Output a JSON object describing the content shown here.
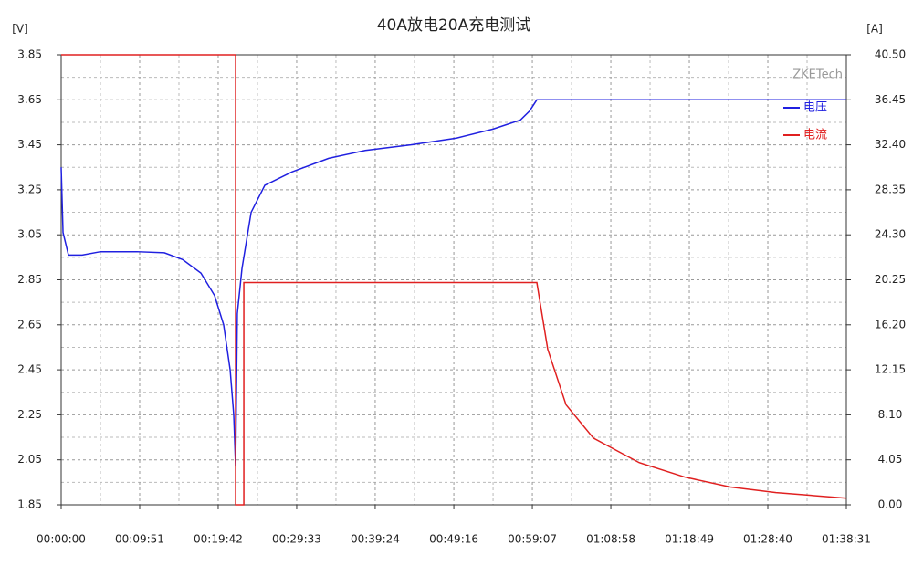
{
  "chart_data": {
    "type": "line",
    "title": "40A放电20A充电测试",
    "y_label": "[V]",
    "y2_label": "[A]",
    "watermark": "ZKETech",
    "xlim": [
      0,
      5911
    ],
    "xticks": [
      {
        "value": 0,
        "label": "00:00:00"
      },
      {
        "value": 591,
        "label": "00:09:51"
      },
      {
        "value": 1182,
        "label": "00:19:42"
      },
      {
        "value": 1773,
        "label": "00:29:33"
      },
      {
        "value": 2364,
        "label": "00:39:24"
      },
      {
        "value": 2956,
        "label": "00:49:16"
      },
      {
        "value": 3547,
        "label": "00:59:07"
      },
      {
        "value": 4138,
        "label": "01:08:58"
      },
      {
        "value": 4729,
        "label": "01:18:49"
      },
      {
        "value": 5320,
        "label": "01:28:40"
      },
      {
        "value": 5911,
        "label": "01:38:31"
      }
    ],
    "ylim": [
      1.85,
      3.85
    ],
    "yticks": [
      1.85,
      2.05,
      2.25,
      2.45,
      2.65,
      2.85,
      3.05,
      3.25,
      3.45,
      3.65,
      3.85
    ],
    "y2lim": [
      0,
      40.5
    ],
    "y2ticks": [
      {
        "value": 0,
        "label": "0.00"
      },
      4.05,
      {
        "value": 8.1,
        "label": "8.10"
      },
      12.15,
      {
        "value": 16.2,
        "label": "16.20"
      },
      20.25,
      {
        "value": 24.3,
        "label": "24.30"
      },
      28.35,
      {
        "value": 32.4,
        "label": "32.40"
      },
      36.45,
      {
        "value": 40.5,
        "label": "40.50"
      }
    ],
    "grid": true,
    "legend": "upper right",
    "series": [
      {
        "name": "电压",
        "color": "#2020e0",
        "x": [
          0,
          14,
          55,
          158,
          296,
          570,
          777,
          914,
          1052,
          1155,
          1223,
          1272,
          1299,
          1313,
          1326,
          1361,
          1430,
          1533,
          1739,
          2014,
          2289,
          2632,
          2976,
          3251,
          3457,
          3526,
          3581,
          5911
        ],
        "values": [
          3.35,
          3.06,
          2.96,
          2.96,
          2.975,
          2.975,
          2.97,
          2.94,
          2.88,
          2.78,
          2.65,
          2.45,
          2.25,
          2.02,
          2.7,
          2.9,
          3.15,
          3.27,
          3.33,
          3.39,
          3.425,
          3.45,
          3.48,
          3.52,
          3.56,
          3.6,
          3.65,
          3.65
        ]
      },
      {
        "name": "电流",
        "color": "#e02020",
        "axis": "y2",
        "x": [
          0,
          1313,
          1313,
          1375,
          1375,
          3581,
          3663,
          3801,
          4007,
          4351,
          4694,
          5038,
          5382,
          5911
        ],
        "values": [
          40.5,
          40.5,
          0,
          0,
          20,
          20,
          14,
          9,
          6,
          3.8,
          2.5,
          1.6,
          1.1,
          0.6
        ]
      }
    ]
  }
}
